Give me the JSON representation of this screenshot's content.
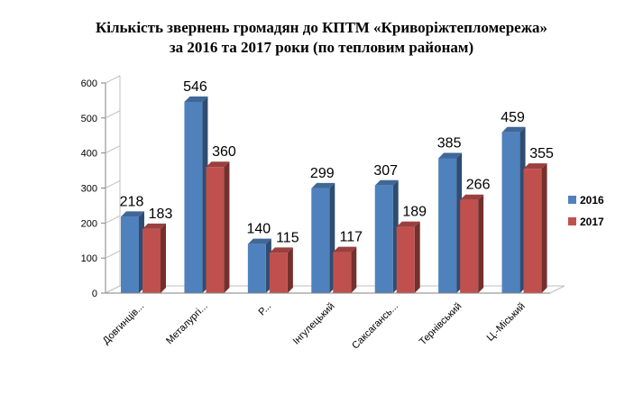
{
  "chart_data": {
    "type": "bar",
    "title_line1": "Кількість звернень громадян до КПТМ «Криворіжтепломережа»",
    "title_line2": "за 2016 та 2017 роки (по тепловим районам)",
    "categories": [
      "Довгинців...",
      "Металургі...",
      "Р...",
      "Інгулецький",
      "Саксагансь...",
      "Тернівський",
      "Ц.-Міський"
    ],
    "series": [
      {
        "name": "2016",
        "values": [
          218,
          546,
          140,
          299,
          307,
          385,
          459
        ],
        "color": "#4f81bd"
      },
      {
        "name": "2017",
        "values": [
          183,
          360,
          115,
          117,
          189,
          266,
          355
        ],
        "color": "#c0504d"
      }
    ],
    "ylim": [
      0,
      600
    ],
    "yticks": [
      "0",
      "100",
      "200",
      "300",
      "400",
      "500",
      "600"
    ],
    "legend_position": "right",
    "grid": false,
    "style": "3d-clustered-bar"
  }
}
